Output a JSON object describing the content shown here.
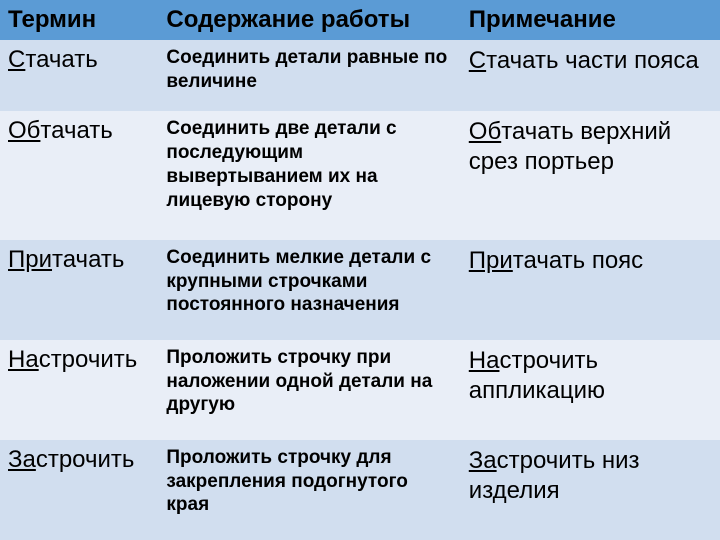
{
  "table": {
    "columns": [
      {
        "label": "Термин",
        "width": "22%"
      },
      {
        "label": "Содержание работы",
        "width": "42%"
      },
      {
        "label": "Примечание",
        "width": "36%"
      }
    ],
    "colors": {
      "header_bg": "#5b9bd5",
      "row_alt1_bg": "#d1deef",
      "row_alt2_bg": "#e9eef7",
      "text": "#000000"
    },
    "typography": {
      "header_fontsize_pt": 18,
      "term_fontsize_pt": 18,
      "desc_fontsize_pt": 14,
      "note_fontsize_pt": 18,
      "font_family": "Arial",
      "desc_fontweight": "bold"
    },
    "rows": [
      {
        "term_prefix": "С",
        "term_rest": "тачать",
        "desc": "Соединить детали равные по величине",
        "note_prefix": "С",
        "note_rest": "тачать части пояса"
      },
      {
        "term_prefix": "Об",
        "term_rest": "тачать",
        "desc": "Соединить две детали с последующим вывертыванием их на лицевую сторону",
        "note_prefix": "Об",
        "note_rest": "тачать верхний срез портьер"
      },
      {
        "term_prefix": "При",
        "term_rest": "тачать",
        "desc": "Соединить мелкие детали с крупными строчками постоянного назначения",
        "note_prefix": "При",
        "note_rest": "тачать пояс"
      },
      {
        "term_prefix": "На",
        "term_rest": "строчить",
        "desc": "Проложить строчку при наложении одной детали на другую",
        "note_prefix": "На",
        "note_rest": "строчить аппликацию"
      },
      {
        "term_prefix": "За",
        "term_rest": "строчить",
        "desc": "Проложить строчку для закрепления подогнутого края",
        "note_prefix": "За",
        "note_rest": "строчить низ изделия"
      }
    ]
  }
}
